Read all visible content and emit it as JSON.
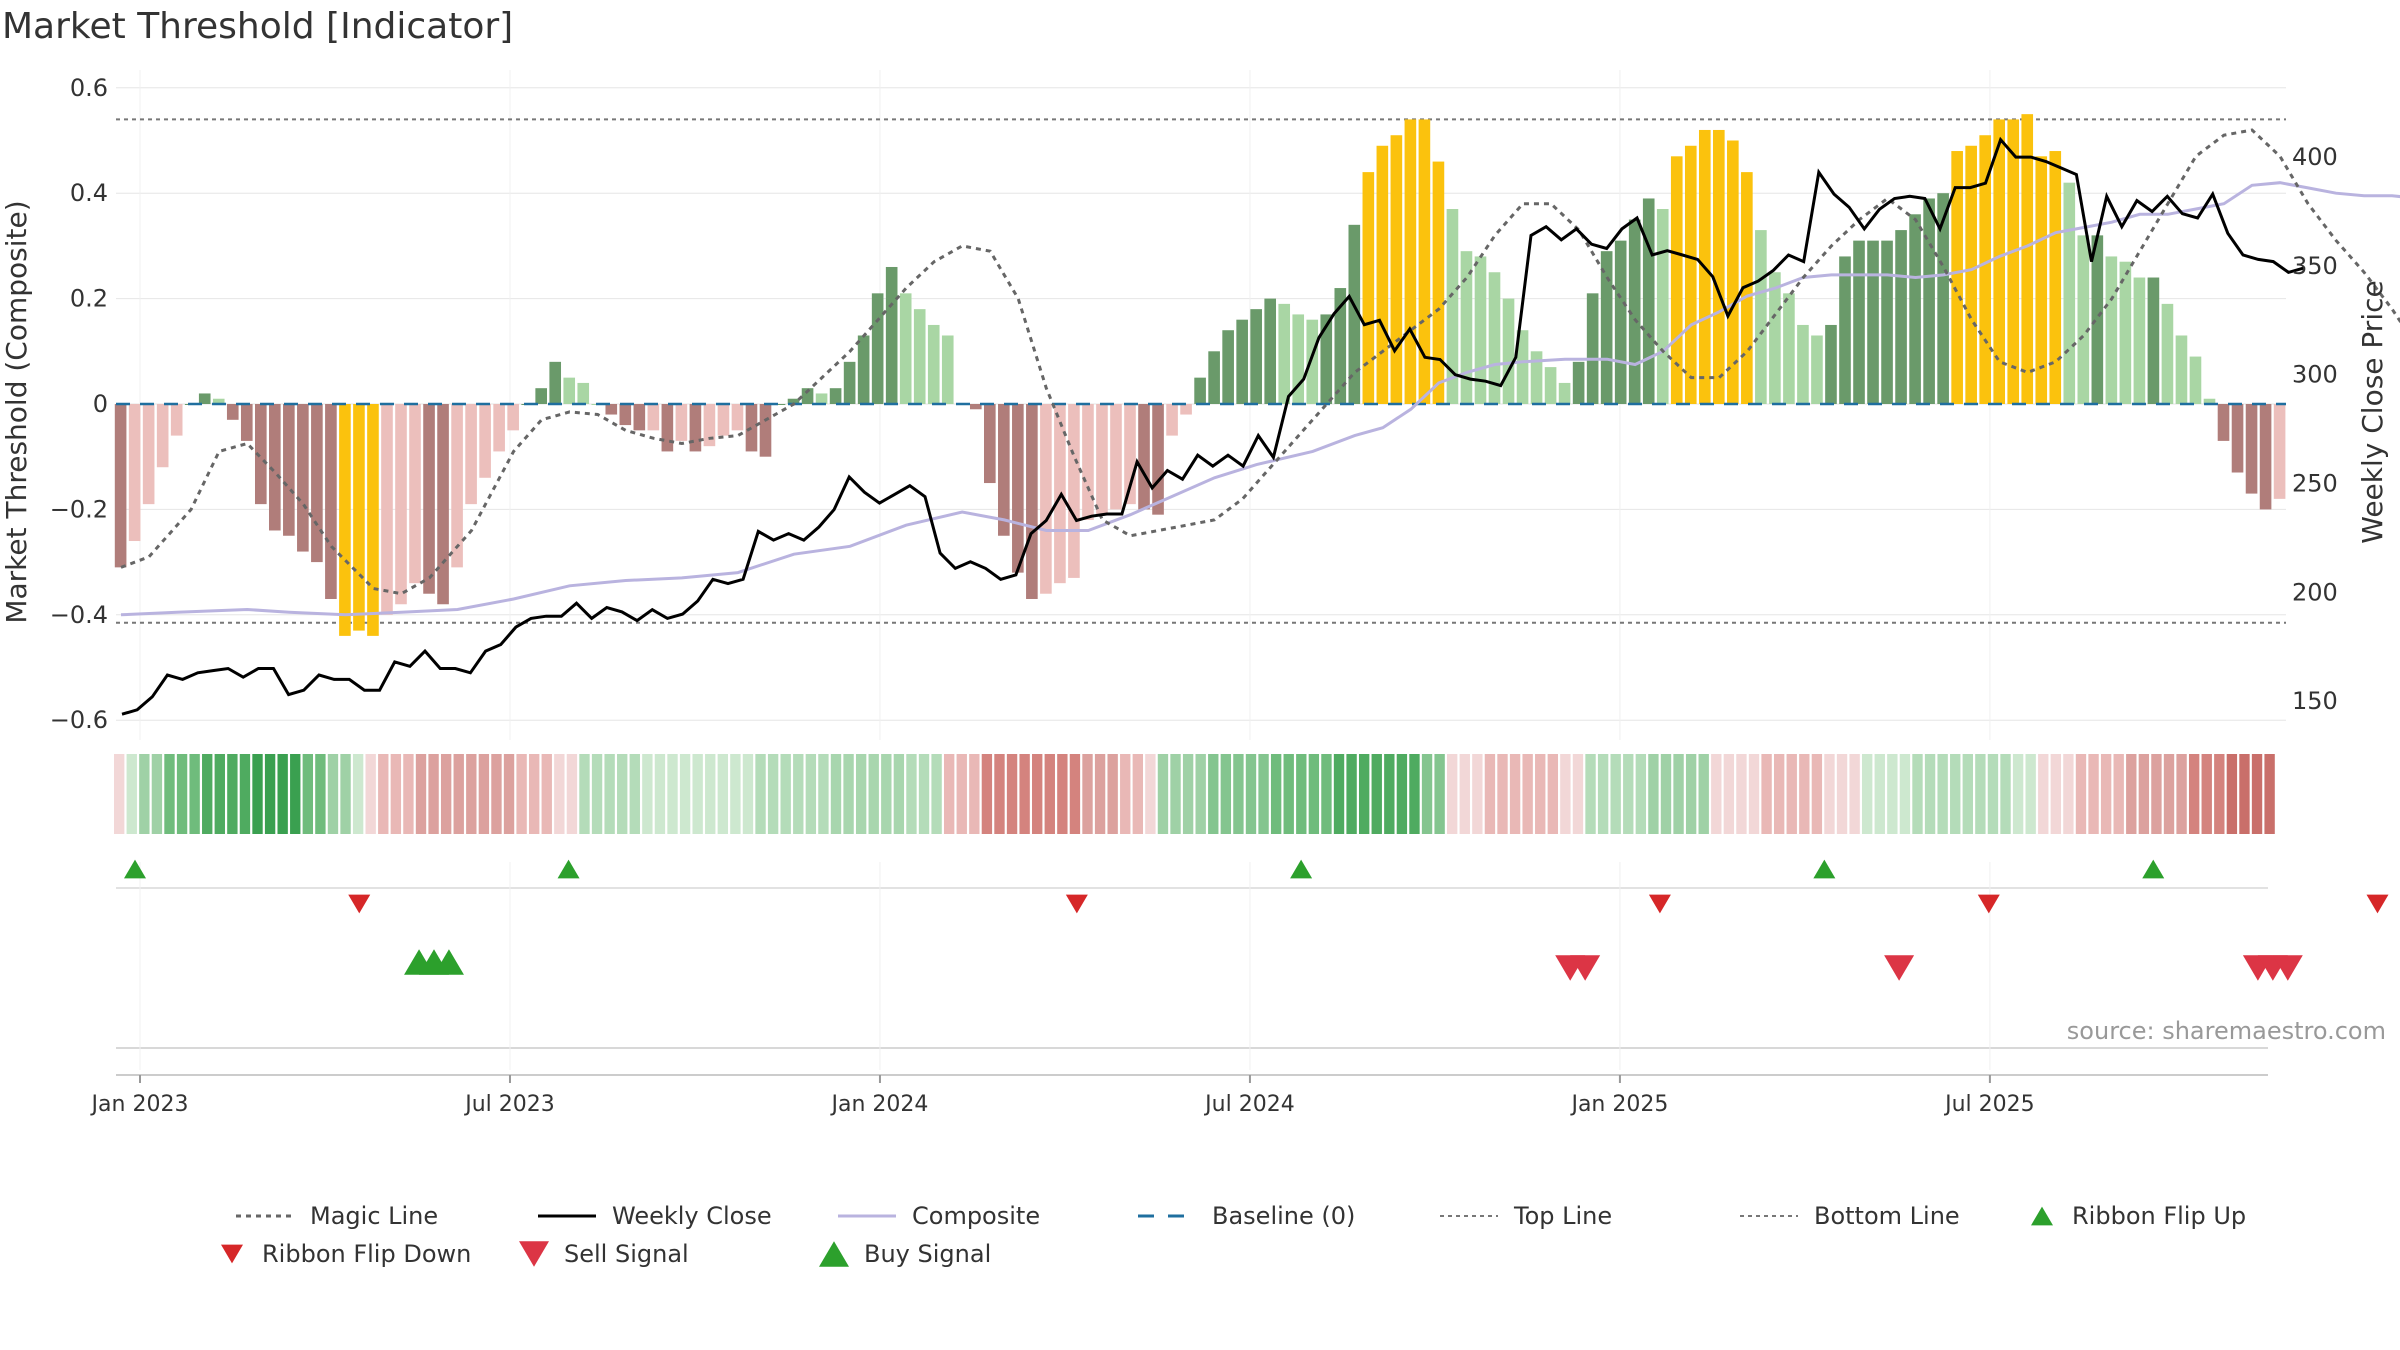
{
  "title": "Market Threshold [Indicator]",
  "source": "source: sharemaestro.com",
  "chart_data": {
    "type": "bar",
    "y_left_label": "Market Threshold (Composite)",
    "y_right_label": "Weekly Close Price",
    "y_left_ticks": [
      "0.6",
      "0.4",
      "0.2",
      "0",
      "−0.2",
      "−0.4",
      "−0.6"
    ],
    "y_right_ticks": [
      "400",
      "350",
      "300",
      "250",
      "200",
      "150"
    ],
    "y_left_range": [
      -0.6,
      0.6
    ],
    "y_right_range": [
      137,
      412
    ],
    "x_ticks": [
      "Jan 2023",
      "Jul 2023",
      "Jan 2024",
      "Jul 2024",
      "Jan 2025",
      "Jul 2025"
    ],
    "x_range_weeks": [
      -1,
      136
    ],
    "top_line": 0.54,
    "bottom_line": -0.415,
    "histogram": [
      -0.31,
      -0.26,
      -0.19,
      -0.12,
      -0.06,
      0,
      0.02,
      0.01,
      -0.03,
      -0.07,
      -0.19,
      -0.24,
      -0.25,
      -0.28,
      -0.3,
      -0.37,
      -0.44,
      -0.43,
      -0.44,
      -0.4,
      -0.38,
      -0.34,
      -0.36,
      -0.38,
      -0.31,
      -0.19,
      -0.14,
      -0.09,
      -0.05,
      0,
      0.03,
      0.08,
      0.05,
      0.04,
      0,
      -0.02,
      -0.04,
      -0.05,
      -0.05,
      -0.09,
      -0.07,
      -0.09,
      -0.08,
      -0.06,
      -0.05,
      -0.09,
      -0.1,
      0,
      0.01,
      0.03,
      0.02,
      0.03,
      0.08,
      0.13,
      0.21,
      0.26,
      0.21,
      0.18,
      0.15,
      0.13,
      0,
      -0.01,
      -0.15,
      -0.25,
      -0.32,
      -0.37,
      -0.36,
      -0.34,
      -0.33,
      -0.22,
      -0.21,
      -0.2,
      -0.19,
      -0.2,
      -0.21,
      -0.06,
      -0.02,
      0.05,
      0.1,
      0.14,
      0.16,
      0.18,
      0.2,
      0.19,
      0.17,
      0.16,
      0.17,
      0.22,
      0.34,
      0.44,
      0.49,
      0.51,
      0.54,
      0.54,
      0.46,
      0.37,
      0.29,
      0.28,
      0.25,
      0.2,
      0.14,
      0.1,
      0.07,
      0.04,
      0.08,
      0.21,
      0.29,
      0.31,
      0.35,
      0.39,
      0.37,
      0.47,
      0.49,
      0.52,
      0.52,
      0.5,
      0.44,
      0.33,
      0.25,
      0.21,
      0.15,
      0.13,
      0.15,
      0.28,
      0.31,
      0.31,
      0.31,
      0.33,
      0.36,
      0.39,
      0.4,
      0.48,
      0.49,
      0.51,
      0.54,
      0.54,
      0.55,
      0.47,
      0.48,
      0.42,
      0.32,
      0.32,
      0.28,
      0.27,
      0.24,
      0.24,
      0.19,
      0.13,
      0.09,
      0.01,
      -0.07,
      -0.13,
      -0.17,
      -0.2,
      -0.18
    ],
    "magic_line": [
      [
        0,
        -0.31
      ],
      [
        2,
        -0.29
      ],
      [
        5,
        -0.2
      ],
      [
        7,
        -0.09
      ],
      [
        9,
        -0.075
      ],
      [
        11,
        -0.13
      ],
      [
        13,
        -0.19
      ],
      [
        15,
        -0.27
      ],
      [
        18,
        -0.35
      ],
      [
        20,
        -0.36
      ],
      [
        22,
        -0.33
      ],
      [
        25,
        -0.24
      ],
      [
        28,
        -0.09
      ],
      [
        30,
        -0.03
      ],
      [
        32,
        -0.015
      ],
      [
        34,
        -0.02
      ],
      [
        36,
        -0.05
      ],
      [
        38,
        -0.065
      ],
      [
        40,
        -0.075
      ],
      [
        42,
        -0.065
      ],
      [
        44,
        -0.06
      ],
      [
        46,
        -0.03
      ],
      [
        48,
        0.0
      ],
      [
        50,
        0.05
      ],
      [
        52,
        0.1
      ],
      [
        54,
        0.16
      ],
      [
        56,
        0.22
      ],
      [
        58,
        0.27
      ],
      [
        60,
        0.3
      ],
      [
        62,
        0.29
      ],
      [
        64,
        0.2
      ],
      [
        66,
        0.03
      ],
      [
        68,
        -0.1
      ],
      [
        70,
        -0.22
      ],
      [
        72,
        -0.25
      ],
      [
        74,
        -0.24
      ],
      [
        76,
        -0.23
      ],
      [
        78,
        -0.22
      ],
      [
        80,
        -0.18
      ],
      [
        82,
        -0.12
      ],
      [
        84,
        -0.06
      ],
      [
        86,
        0.0
      ],
      [
        88,
        0.06
      ],
      [
        90,
        0.1
      ],
      [
        92,
        0.14
      ],
      [
        94,
        0.18
      ],
      [
        96,
        0.24
      ],
      [
        98,
        0.32
      ],
      [
        100,
        0.38
      ],
      [
        102,
        0.38
      ],
      [
        104,
        0.33
      ],
      [
        106,
        0.24
      ],
      [
        108,
        0.16
      ],
      [
        110,
        0.1
      ],
      [
        112,
        0.05
      ],
      [
        114,
        0.05
      ],
      [
        116,
        0.1
      ],
      [
        118,
        0.17
      ],
      [
        120,
        0.24
      ],
      [
        122,
        0.3
      ],
      [
        124,
        0.35
      ],
      [
        126,
        0.39
      ],
      [
        128,
        0.35
      ],
      [
        130,
        0.26
      ],
      [
        132,
        0.16
      ],
      [
        134,
        0.08
      ],
      [
        136,
        0.06
      ],
      [
        138,
        0.08
      ],
      [
        140,
        0.13
      ],
      [
        142,
        0.2
      ],
      [
        144,
        0.29
      ],
      [
        146,
        0.38
      ],
      [
        148,
        0.47
      ],
      [
        150,
        0.51
      ],
      [
        152,
        0.52
      ],
      [
        154,
        0.47
      ],
      [
        156,
        0.38
      ],
      [
        158,
        0.31
      ],
      [
        160,
        0.25
      ],
      [
        162,
        0.18
      ],
      [
        164,
        0.1
      ],
      [
        166,
        0.0
      ],
      [
        167,
        -0.04
      ]
    ],
    "composite": [
      [
        0,
        -0.4
      ],
      [
        4,
        -0.395
      ],
      [
        9,
        -0.39
      ],
      [
        12,
        -0.395
      ],
      [
        16,
        -0.4
      ],
      [
        20,
        -0.395
      ],
      [
        24,
        -0.39
      ],
      [
        28,
        -0.37
      ],
      [
        32,
        -0.345
      ],
      [
        36,
        -0.335
      ],
      [
        40,
        -0.33
      ],
      [
        44,
        -0.32
      ],
      [
        48,
        -0.285
      ],
      [
        52,
        -0.27
      ],
      [
        56,
        -0.23
      ],
      [
        60,
        -0.205
      ],
      [
        63,
        -0.22
      ],
      [
        66,
        -0.24
      ],
      [
        69,
        -0.24
      ],
      [
        72,
        -0.21
      ],
      [
        75,
        -0.175
      ],
      [
        78,
        -0.14
      ],
      [
        81,
        -0.115
      ],
      [
        85,
        -0.09
      ],
      [
        88,
        -0.06
      ],
      [
        90,
        -0.045
      ],
      [
        92,
        -0.01
      ],
      [
        94,
        0.04
      ],
      [
        96,
        0.06
      ],
      [
        98,
        0.075
      ],
      [
        100,
        0.08
      ],
      [
        103,
        0.085
      ],
      [
        106,
        0.085
      ],
      [
        108,
        0.075
      ],
      [
        110,
        0.1
      ],
      [
        112,
        0.15
      ],
      [
        114,
        0.175
      ],
      [
        116,
        0.205
      ],
      [
        118,
        0.22
      ],
      [
        120,
        0.24
      ],
      [
        122,
        0.245
      ],
      [
        124,
        0.245
      ],
      [
        126,
        0.245
      ],
      [
        128,
        0.24
      ],
      [
        130,
        0.245
      ],
      [
        132,
        0.255
      ],
      [
        134,
        0.28
      ],
      [
        136,
        0.3
      ],
      [
        138,
        0.325
      ],
      [
        140,
        0.335
      ],
      [
        142,
        0.345
      ],
      [
        144,
        0.36
      ],
      [
        146,
        0.36
      ],
      [
        148,
        0.37
      ],
      [
        150,
        0.38
      ],
      [
        152,
        0.415
      ],
      [
        154,
        0.42
      ],
      [
        156,
        0.41
      ],
      [
        158,
        0.4
      ],
      [
        160,
        0.395
      ],
      [
        162,
        0.395
      ],
      [
        164,
        0.39
      ],
      [
        166,
        0.365
      ],
      [
        167,
        0.36
      ]
    ],
    "weekly_close": [
      [
        0,
        144
      ],
      [
        1,
        146
      ],
      [
        2,
        152
      ],
      [
        3,
        162
      ],
      [
        4,
        160
      ],
      [
        5,
        163
      ],
      [
        6,
        164
      ],
      [
        7,
        165
      ],
      [
        8,
        161
      ],
      [
        9,
        165
      ],
      [
        10,
        165
      ],
      [
        11,
        153
      ],
      [
        12,
        155
      ],
      [
        13,
        162
      ],
      [
        14,
        160
      ],
      [
        15,
        160
      ],
      [
        16,
        155
      ],
      [
        17,
        155
      ],
      [
        18,
        168
      ],
      [
        19,
        166
      ],
      [
        20,
        173
      ],
      [
        21,
        165
      ],
      [
        22,
        165
      ],
      [
        23,
        163
      ],
      [
        24,
        173
      ],
      [
        25,
        176
      ],
      [
        26,
        184
      ],
      [
        27,
        188
      ],
      [
        28,
        189
      ],
      [
        29,
        189
      ],
      [
        30,
        195
      ],
      [
        31,
        188
      ],
      [
        32,
        193
      ],
      [
        33,
        191
      ],
      [
        34,
        187
      ],
      [
        35,
        192
      ],
      [
        36,
        188
      ],
      [
        37,
        190
      ],
      [
        38,
        196
      ],
      [
        39,
        206
      ],
      [
        40,
        204
      ],
      [
        41,
        206
      ],
      [
        42,
        228
      ],
      [
        43,
        224
      ],
      [
        44,
        227
      ],
      [
        45,
        224
      ],
      [
        46,
        230
      ],
      [
        47,
        238
      ],
      [
        48,
        253
      ],
      [
        49,
        246
      ],
      [
        50,
        241
      ],
      [
        51,
        245
      ],
      [
        52,
        249
      ],
      [
        53,
        244
      ],
      [
        54,
        218
      ],
      [
        55,
        211
      ],
      [
        56,
        214
      ],
      [
        57,
        211
      ],
      [
        58,
        206
      ],
      [
        59,
        208
      ],
      [
        60,
        227
      ],
      [
        61,
        233
      ],
      [
        62,
        245
      ],
      [
        63,
        233
      ],
      [
        64,
        235
      ],
      [
        65,
        236
      ],
      [
        66,
        236
      ],
      [
        67,
        260
      ],
      [
        68,
        248
      ],
      [
        69,
        256
      ],
      [
        70,
        252
      ],
      [
        71,
        263
      ],
      [
        72,
        258
      ],
      [
        73,
        263
      ],
      [
        74,
        258
      ],
      [
        75,
        272
      ],
      [
        76,
        262
      ],
      [
        77,
        290
      ],
      [
        78,
        298
      ],
      [
        79,
        317
      ],
      [
        80,
        328
      ],
      [
        81,
        336
      ],
      [
        82,
        323
      ],
      [
        83,
        325
      ],
      [
        84,
        311
      ],
      [
        85,
        321
      ],
      [
        86,
        308
      ],
      [
        87,
        307
      ],
      [
        88,
        300
      ],
      [
        89,
        298
      ],
      [
        90,
        297
      ],
      [
        91,
        295
      ],
      [
        92,
        308
      ],
      [
        93,
        364
      ],
      [
        94,
        368
      ],
      [
        95,
        362
      ],
      [
        96,
        367
      ],
      [
        97,
        360
      ],
      [
        98,
        358
      ],
      [
        99,
        367
      ],
      [
        100,
        372
      ],
      [
        101,
        355
      ],
      [
        102,
        357
      ],
      [
        103,
        355
      ],
      [
        104,
        353
      ],
      [
        105,
        345
      ],
      [
        106,
        327
      ],
      [
        107,
        340
      ],
      [
        108,
        343
      ],
      [
        109,
        348
      ],
      [
        110,
        355
      ],
      [
        111,
        352
      ],
      [
        112,
        393
      ],
      [
        113,
        383
      ],
      [
        114,
        377
      ],
      [
        115,
        367
      ],
      [
        116,
        376
      ],
      [
        117,
        381
      ],
      [
        118,
        382
      ],
      [
        119,
        381
      ],
      [
        120,
        367
      ],
      [
        121,
        386
      ],
      [
        122,
        386
      ],
      [
        123,
        388
      ],
      [
        124,
        408
      ],
      [
        125,
        400
      ],
      [
        126,
        400
      ],
      [
        127,
        398
      ],
      [
        128,
        395
      ],
      [
        129,
        392
      ],
      [
        130,
        352
      ],
      [
        131,
        382
      ],
      [
        132,
        368
      ],
      [
        133,
        380
      ],
      [
        134,
        375
      ],
      [
        135,
        382
      ],
      [
        136,
        374
      ],
      [
        137,
        372
      ],
      [
        138,
        383
      ],
      [
        139,
        365
      ],
      [
        140,
        355
      ],
      [
        141,
        353
      ],
      [
        142,
        352
      ],
      [
        143,
        347
      ],
      [
        144,
        349
      ]
    ],
    "ribbon": [
      {
        "n": 1,
        "c": "#f2d7d7"
      },
      {
        "n": 1,
        "c": "#cde8cf"
      },
      {
        "n": 2,
        "c": "#9fd1a6"
      },
      {
        "n": 3,
        "c": "#6fbc7c"
      },
      {
        "n": 4,
        "c": "#4fab60"
      },
      {
        "n": 4,
        "c": "#3aa050"
      },
      {
        "n": 2,
        "c": "#6fbc7c"
      },
      {
        "n": 2,
        "c": "#9fd1a6"
      },
      {
        "n": 1,
        "c": "#cde8cf"
      },
      {
        "n": 1,
        "c": "#f2d7d7"
      },
      {
        "n": 3,
        "c": "#e9b8b6"
      },
      {
        "n": 8,
        "c": "#dca19e"
      },
      {
        "n": 3,
        "c": "#e9b8b6"
      },
      {
        "n": 2,
        "c": "#f2d7d7"
      },
      {
        "n": 5,
        "c": "#b4dcb9"
      },
      {
        "n": 9,
        "c": "#cde8cf"
      },
      {
        "n": 6,
        "c": "#b4dcb9"
      },
      {
        "n": 6,
        "c": "#a8d6ae"
      },
      {
        "n": 3,
        "c": "#b4dcb9"
      },
      {
        "n": 3,
        "c": "#e9b8b6"
      },
      {
        "n": 8,
        "c": "#d4837e"
      },
      {
        "n": 3,
        "c": "#dca19e"
      },
      {
        "n": 2,
        "c": "#e9b8b6"
      },
      {
        "n": 1,
        "c": "#f2d7d7"
      },
      {
        "n": 4,
        "c": "#9fd1a6"
      },
      {
        "n": 5,
        "c": "#84c58f"
      },
      {
        "n": 5,
        "c": "#6fbc7c"
      },
      {
        "n": 7,
        "c": "#4fab60"
      },
      {
        "n": 2,
        "c": "#84c58f"
      },
      {
        "n": 3,
        "c": "#f2d7d7"
      },
      {
        "n": 6,
        "c": "#e9b8b6"
      },
      {
        "n": 2,
        "c": "#f2d7d7"
      },
      {
        "n": 5,
        "c": "#b4dcb9"
      },
      {
        "n": 5,
        "c": "#9fd1a6"
      },
      {
        "n": 4,
        "c": "#f2d7d7"
      },
      {
        "n": 5,
        "c": "#e9b8b6"
      },
      {
        "n": 3,
        "c": "#f2d7d7"
      },
      {
        "n": 4,
        "c": "#cde8cf"
      },
      {
        "n": 8,
        "c": "#b4dcb9"
      },
      {
        "n": 2,
        "c": "#cde8cf"
      },
      {
        "n": 3,
        "c": "#f2d7d7"
      },
      {
        "n": 4,
        "c": "#e9b8b6"
      },
      {
        "n": 5,
        "c": "#dca19e"
      },
      {
        "n": 3,
        "c": "#d4837e"
      },
      {
        "n": 4,
        "c": "#c96f6a"
      }
    ],
    "ribbon_flip_up_x": [
      0,
      29,
      78,
      113,
      135
    ],
    "ribbon_flip_down_x": [
      15,
      63,
      102,
      124,
      150
    ],
    "buy_signal_x": [
      19,
      20,
      21
    ],
    "sell_signal_x": [
      96,
      97,
      118,
      142,
      143,
      144
    ],
    "legend": [
      "Magic Line",
      "Weekly Close",
      "Composite",
      "Baseline (0)",
      "Top Line",
      "Bottom Line",
      "Ribbon Flip Up",
      "Ribbon Flip Down",
      "Sell Signal",
      "Buy Signal"
    ],
    "legend_placement": "bottom",
    "colors": {
      "bar_pos_strong": "#6a9a6a",
      "bar_pos_weak": "#a9d6a4",
      "bar_neg_strong": "#b07d7a",
      "bar_neg_weak": "#ecbfbc",
      "extreme": "#fbc20d",
      "weekly_close": "#000000",
      "composite": "#b9b3df",
      "magic_line": "#666666",
      "baseline": "#1f6f9f",
      "threshold": "#777777",
      "flip_up": "#2ca02c",
      "flip_down": "#d62728",
      "buy_signal": "#2ca02c",
      "sell_signal": "#dc3545"
    }
  }
}
